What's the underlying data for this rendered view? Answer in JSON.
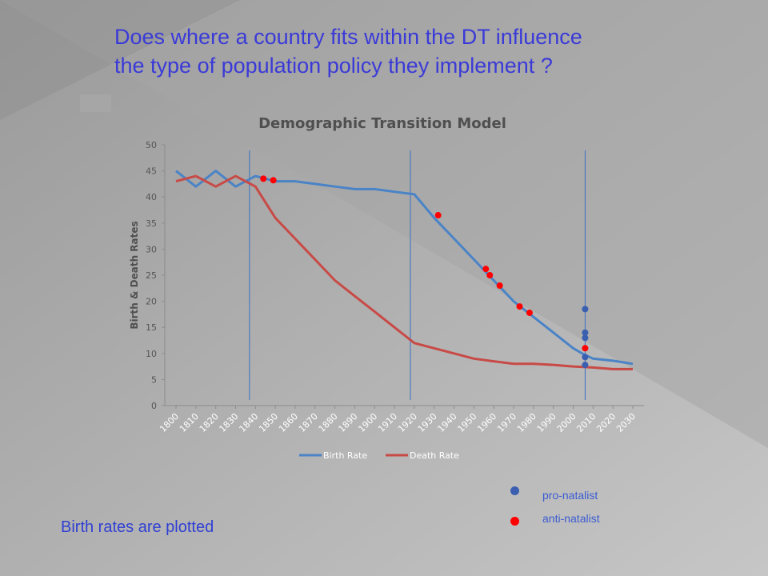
{
  "slide": {
    "headline_line1": "Does where a country fits within the DT influence",
    "headline_line2": "the type of population policy they implement ?",
    "footnote": "Birth rates are plotted"
  },
  "key": {
    "pro": {
      "label": "pro-natalist",
      "color": "#3a5fb0"
    },
    "anti": {
      "label": "anti-natalist",
      "color": "#ff0000"
    }
  },
  "chart_data": {
    "type": "line",
    "title": "Demographic Transition Model",
    "xlabel": "",
    "ylabel": "Birth & Death Rates",
    "ylim": [
      0,
      50
    ],
    "yticks": [
      0,
      5,
      10,
      15,
      20,
      25,
      30,
      35,
      40,
      45,
      50
    ],
    "categories": [
      "1800",
      "1810",
      "1820",
      "1830",
      "1840",
      "1850",
      "1860",
      "1870",
      "1880",
      "1890",
      "1900",
      "1910",
      "1920",
      "1930",
      "1940",
      "1950",
      "1960",
      "1970",
      "1980",
      "1990",
      "2000",
      "2010",
      "2020",
      "2030"
    ],
    "grid": false,
    "legend_position": "bottom",
    "series": [
      {
        "name": "Birth Rate",
        "color": "#4a83c6",
        "x": [
          1800,
          1810,
          1820,
          1830,
          1840,
          1850,
          1860,
          1870,
          1880,
          1890,
          1900,
          1910,
          1920,
          1930,
          1940,
          1950,
          1960,
          1970,
          1980,
          1990,
          2000,
          2005,
          2010,
          2020,
          2030
        ],
        "y": [
          45,
          42,
          45,
          42,
          44,
          43,
          43,
          42.5,
          42,
          41.5,
          41.5,
          41,
          40.5,
          36,
          32,
          28,
          24,
          20,
          17,
          14,
          11,
          9.9,
          9,
          8.6,
          8
        ]
      },
      {
        "name": "Death Rate",
        "color": "#c84a46",
        "x": [
          1800,
          1810,
          1820,
          1830,
          1840,
          1850,
          1860,
          1870,
          1880,
          1890,
          1900,
          1910,
          1920,
          1930,
          1940,
          1950,
          1960,
          1970,
          1980,
          1990,
          2000,
          2010,
          2020,
          2030
        ],
        "y": [
          43,
          44,
          42,
          44,
          42,
          36,
          32,
          28,
          24,
          21,
          18,
          15,
          12,
          11,
          10,
          9,
          8.5,
          8,
          8,
          7.8,
          7.5,
          7.3,
          7,
          7
        ]
      }
    ],
    "markers": [
      {
        "x": 1844,
        "y": 43.5,
        "type": "anti"
      },
      {
        "x": 1849,
        "y": 43.2,
        "type": "anti"
      },
      {
        "x": 1932,
        "y": 36.5,
        "type": "anti"
      },
      {
        "x": 1956,
        "y": 26.2,
        "type": "anti"
      },
      {
        "x": 1958,
        "y": 25,
        "type": "anti"
      },
      {
        "x": 1963,
        "y": 23,
        "type": "anti"
      },
      {
        "x": 1973,
        "y": 19,
        "type": "anti"
      },
      {
        "x": 1978,
        "y": 17.8,
        "type": "anti"
      },
      {
        "x": 2006,
        "y": 18.5,
        "type": "pro"
      },
      {
        "x": 2006,
        "y": 14,
        "type": "pro"
      },
      {
        "x": 2006,
        "y": 13,
        "type": "pro"
      },
      {
        "x": 2006,
        "y": 11,
        "type": "anti"
      },
      {
        "x": 2006,
        "y": 9.3,
        "type": "pro"
      },
      {
        "x": 2006,
        "y": 7.8,
        "type": "pro"
      }
    ],
    "stage_lines": [
      1837,
      1918,
      2006
    ]
  }
}
